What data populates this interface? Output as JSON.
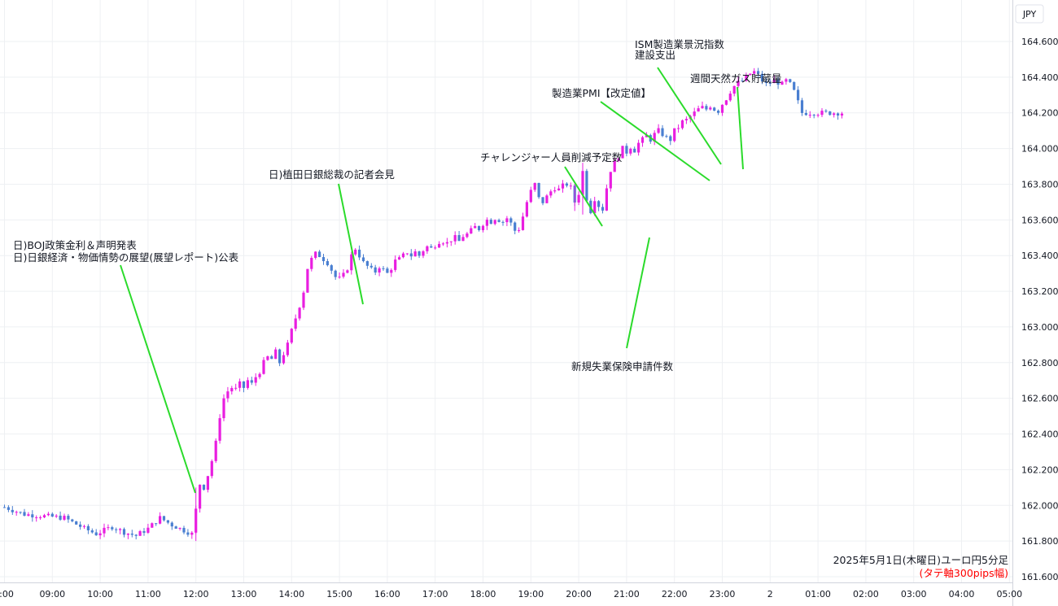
{
  "chart_data": {
    "type": "candlestick",
    "currency_label": "JPY",
    "caption": "2025年5月1日(木曜日)ユーロ円5分足",
    "caption_sub": "(タテ軸300pips幅)",
    "ylim": [
      161.6,
      164.6
    ],
    "y_ticks": [
      "164.600",
      "164.400",
      "164.200",
      "164.000",
      "163.800",
      "163.600",
      "163.400",
      "163.200",
      "163.000",
      "162.800",
      "162.600",
      "162.400",
      "162.200",
      "162.000",
      "161.800",
      "161.600"
    ],
    "x_ticks": [
      ":00",
      "09:00",
      "10:00",
      "11:00",
      "12:00",
      "13:00",
      "14:00",
      "15:00",
      "16:00",
      "17:00",
      "18:00",
      "19:00",
      "20:00",
      "21:00",
      "22:00",
      "23:00",
      "2",
      "01:00",
      "02:00",
      "03:00",
      "04:00",
      "05:00"
    ],
    "price_path": [
      [
        0,
        161.99
      ],
      [
        5,
        161.95
      ],
      [
        10,
        161.94
      ],
      [
        15,
        161.93
      ],
      [
        20,
        161.87
      ],
      [
        23,
        161.84
      ],
      [
        27,
        161.88
      ],
      [
        30,
        161.85
      ],
      [
        33,
        161.83
      ],
      [
        36,
        161.87
      ],
      [
        39,
        161.93
      ],
      [
        42,
        161.89
      ],
      [
        45,
        161.86
      ],
      [
        47,
        161.84
      ],
      [
        47.8,
        161.9
      ],
      [
        48.2,
        162.05
      ],
      [
        49,
        162.12
      ],
      [
        50,
        162.1
      ],
      [
        51,
        162.17
      ],
      [
        52,
        162.25
      ],
      [
        53,
        162.35
      ],
      [
        54,
        162.5
      ],
      [
        55,
        162.6
      ],
      [
        56,
        162.64
      ],
      [
        57,
        162.66
      ],
      [
        58,
        162.65
      ],
      [
        59,
        162.68
      ],
      [
        60,
        162.66
      ],
      [
        61,
        162.7
      ],
      [
        62,
        162.68
      ],
      [
        63,
        162.72
      ],
      [
        64,
        162.75
      ],
      [
        65,
        162.8
      ],
      [
        66,
        162.83
      ],
      [
        67,
        162.82
      ],
      [
        68,
        162.86
      ],
      [
        69,
        162.8
      ],
      [
        70,
        162.85
      ],
      [
        71,
        162.9
      ],
      [
        72,
        162.98
      ],
      [
        73,
        163.05
      ],
      [
        74,
        163.12
      ],
      [
        75,
        163.2
      ],
      [
        76,
        163.33
      ],
      [
        77,
        163.38
      ],
      [
        78,
        163.41
      ],
      [
        79,
        163.4
      ],
      [
        80,
        163.38
      ],
      [
        81,
        163.36
      ],
      [
        82,
        163.32
      ],
      [
        83,
        163.28
      ],
      [
        84,
        163.27
      ],
      [
        85,
        163.29
      ],
      [
        86,
        163.33
      ],
      [
        87,
        163.4
      ],
      [
        88,
        163.44
      ],
      [
        89,
        163.4
      ],
      [
        90,
        163.36
      ],
      [
        91,
        163.34
      ],
      [
        92,
        163.32
      ],
      [
        93,
        163.31
      ],
      [
        94,
        163.34
      ],
      [
        95,
        163.32
      ],
      [
        96,
        163.3
      ],
      [
        97,
        163.33
      ],
      [
        98,
        163.37
      ],
      [
        99,
        163.38
      ],
      [
        100,
        163.4
      ],
      [
        101,
        163.42
      ],
      [
        102,
        163.4
      ],
      [
        103,
        163.42
      ],
      [
        104,
        163.4
      ],
      [
        105,
        163.43
      ],
      [
        106,
        163.45
      ],
      [
        107,
        163.44
      ],
      [
        108,
        163.46
      ],
      [
        109,
        163.48
      ],
      [
        110,
        163.48
      ],
      [
        111,
        163.47
      ],
      [
        112,
        163.49
      ],
      [
        113,
        163.5
      ],
      [
        114,
        163.48
      ],
      [
        115,
        163.51
      ],
      [
        116,
        163.52
      ],
      [
        117,
        163.54
      ],
      [
        118,
        163.56
      ],
      [
        119,
        163.55
      ],
      [
        120,
        163.58
      ],
      [
        121,
        163.6
      ],
      [
        122,
        163.59
      ],
      [
        123,
        163.61
      ],
      [
        124,
        163.6
      ],
      [
        125,
        163.59
      ],
      [
        126,
        163.61
      ],
      [
        127,
        163.58
      ],
      [
        128,
        163.54
      ],
      [
        129,
        163.55
      ],
      [
        130,
        163.62
      ],
      [
        131,
        163.7
      ],
      [
        132,
        163.76
      ],
      [
        133,
        163.8
      ],
      [
        134,
        163.72
      ],
      [
        135,
        163.7
      ],
      [
        136,
        163.73
      ],
      [
        137,
        163.76
      ],
      [
        138,
        163.78
      ],
      [
        139,
        163.77
      ],
      [
        140,
        163.79
      ],
      [
        141,
        163.8
      ],
      [
        142,
        163.78
      ],
      [
        143,
        163.7
      ],
      [
        144,
        163.75
      ],
      [
        144.8,
        163.88
      ],
      [
        145.5,
        163.85
      ],
      [
        146,
        163.72
      ],
      [
        147,
        163.65
      ],
      [
        148,
        163.72
      ],
      [
        149,
        163.68
      ],
      [
        150,
        163.66
      ],
      [
        151,
        163.78
      ],
      [
        152,
        163.88
      ],
      [
        153,
        163.92
      ],
      [
        154,
        163.96
      ],
      [
        155,
        164.0
      ],
      [
        156,
        163.98
      ],
      [
        157,
        164.01
      ],
      [
        158,
        163.99
      ],
      [
        159,
        164.03
      ],
      [
        160,
        164.05
      ],
      [
        161,
        164.07
      ],
      [
        162,
        164.05
      ],
      [
        163,
        164.08
      ],
      [
        164,
        164.1
      ],
      [
        165,
        164.08
      ],
      [
        166,
        164.06
      ],
      [
        167,
        164.05
      ],
      [
        168,
        164.1
      ],
      [
        169,
        164.12
      ],
      [
        170,
        164.15
      ],
      [
        171,
        164.16
      ],
      [
        172,
        164.18
      ],
      [
        173,
        164.2
      ],
      [
        174,
        164.22
      ],
      [
        175,
        164.23
      ],
      [
        176,
        164.22
      ],
      [
        177,
        164.24
      ],
      [
        178,
        164.22
      ],
      [
        179,
        164.21
      ],
      [
        180,
        164.25
      ],
      [
        181,
        164.28
      ],
      [
        182,
        164.32
      ],
      [
        183,
        164.35
      ],
      [
        184,
        164.37
      ],
      [
        185,
        164.38
      ],
      [
        186,
        164.4
      ],
      [
        187,
        164.42
      ],
      [
        188,
        164.43
      ],
      [
        189,
        164.41
      ],
      [
        190,
        164.38
      ],
      [
        191,
        164.36
      ],
      [
        192,
        164.37
      ],
      [
        193,
        164.38
      ],
      [
        194,
        164.37
      ],
      [
        195,
        164.36
      ],
      [
        196,
        164.38
      ],
      [
        197,
        164.36
      ],
      [
        198,
        164.32
      ],
      [
        199,
        164.26
      ],
      [
        200,
        164.2
      ]
    ],
    "annotations": [
      {
        "lines": [
          "日)BOJ政策金利＆声明発表",
          "日)日銀経済・物価情勢の展望(展望レポート)公表"
        ]
      },
      {
        "lines": [
          "日)植田日銀総裁の記者会見"
        ]
      },
      {
        "lines": [
          "チャレンジャー人員削減予定数"
        ]
      },
      {
        "lines": [
          "製造業PMI【改定値】"
        ]
      },
      {
        "lines": [
          "ISM製造業景況指数",
          "建設支出"
        ]
      },
      {
        "lines": [
          "週間天然ガス貯蔵量"
        ]
      },
      {
        "lines": [
          "新規失業保険申請件数"
        ]
      }
    ],
    "colors": {
      "up": "#e91ee0",
      "down": "#4a7fd1",
      "grid": "#eef0f3",
      "leader": "#2bdb2b",
      "caption_sub": "#ff0000",
      "axis_text": "#131722"
    }
  }
}
